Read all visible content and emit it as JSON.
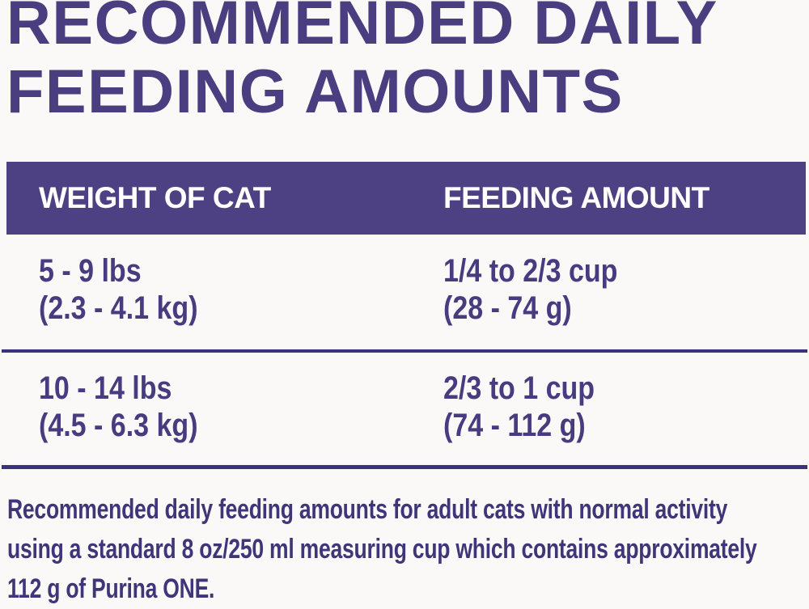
{
  "page": {
    "background": "#FBF9F7",
    "accent_purple": "#4E4183",
    "title_purple": "#4A3E80",
    "text_purple": "#473C80",
    "divider_purple": "#3A327C",
    "footnote_purple": "#3F3679",
    "header_text_color": "#FFFFFF"
  },
  "title": {
    "line1": "RECOMMENDED DAILY",
    "line2": "FEEDING AMOUNTS"
  },
  "table": {
    "headers": {
      "weight": "WEIGHT OF CAT",
      "amount": "FEEDING AMOUNT"
    },
    "rows": [
      {
        "weight_lbs": "5 - 9 lbs",
        "weight_kg": "(2.3 - 4.1 kg)",
        "amount_cup": "1/4 to 2/3 cup",
        "amount_g": "(28 - 74 g)"
      },
      {
        "weight_lbs": "10 - 14 lbs",
        "weight_kg": "(4.5 - 6.3 kg)",
        "amount_cup": "2/3 to 1 cup",
        "amount_g": "(74 - 112 g)"
      }
    ]
  },
  "footnote": {
    "line1": "Recommended daily feeding amounts for adult cats with normal activity",
    "line2": "using a standard 8 oz/250 ml measuring cup which contains approximately",
    "line3": "112 g of Purina ONE."
  }
}
